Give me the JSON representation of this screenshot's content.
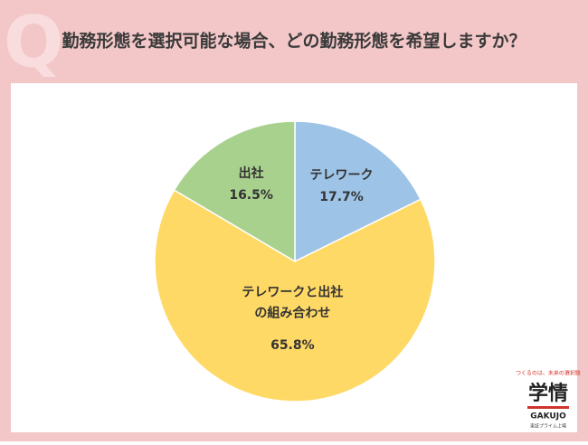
{
  "badge": "Q",
  "chart_data": {
    "type": "pie",
    "title": "勤務形態を選択可能な場合、どの勤務形態を希望しますか？",
    "categories": [
      "テレワーク",
      "テレワークと出社\nの組み合わせ",
      "出社"
    ],
    "values": [
      17.7,
      65.8,
      16.5
    ],
    "value_labels": [
      "17.7%",
      "65.8%",
      "16.5%"
    ],
    "colors": [
      "#9dc3e6",
      "#ffd966",
      "#a9d18e"
    ]
  },
  "logo": {
    "tagline": "つくるのは、未来の選択肢",
    "name": "学情",
    "roman": "GAKUJO",
    "note": "東証プライム上場"
  }
}
